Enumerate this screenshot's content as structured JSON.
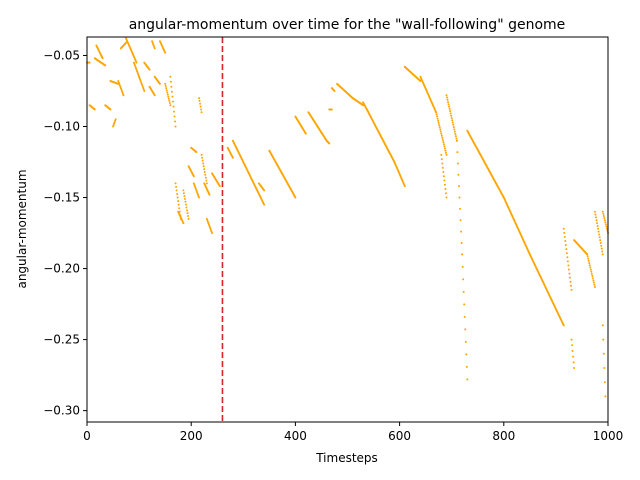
{
  "chart_data": {
    "type": "scatter",
    "title": "angular-momentum over time for the \"wall-following\" genome",
    "xlabel": "Timesteps",
    "ylabel": "angular-momentum",
    "xlim": [
      0,
      1000
    ],
    "ylim": [
      -0.308,
      -0.037
    ],
    "xticks": [
      0,
      200,
      400,
      600,
      800,
      1000
    ],
    "yticks": [
      -0.3,
      -0.25,
      -0.2,
      -0.15,
      -0.1,
      -0.05
    ],
    "xtick_labels": [
      "0",
      "200",
      "400",
      "600",
      "800",
      "1000"
    ],
    "ytick_labels": [
      "−0.30",
      "−0.25",
      "−0.20",
      "−0.15",
      "−0.10",
      "−0.05"
    ],
    "grid": false,
    "legend": "none",
    "point_color": "#ffa500",
    "vline": {
      "x": 260,
      "color": "#d62728",
      "style": "dashed"
    },
    "series": [
      {
        "segments": [
          [
            0,
            -0.055,
            5,
            -0.055
          ],
          [
            5,
            -0.085,
            15,
            -0.088
          ],
          [
            15,
            -0.052,
            35,
            -0.057
          ],
          [
            18,
            -0.043,
            30,
            -0.052
          ],
          [
            35,
            -0.085,
            45,
            -0.088
          ],
          [
            45,
            -0.068,
            60,
            -0.07
          ],
          [
            50,
            -0.1,
            55,
            -0.095
          ],
          [
            60,
            -0.068,
            70,
            -0.078
          ],
          [
            65,
            -0.045,
            75,
            -0.041
          ],
          [
            75,
            -0.038,
            95,
            -0.055
          ],
          [
            90,
            -0.055,
            100,
            -0.065
          ],
          [
            100,
            -0.065,
            110,
            -0.075
          ],
          [
            110,
            -0.055,
            120,
            -0.06
          ],
          [
            120,
            -0.072,
            130,
            -0.078
          ],
          [
            125,
            -0.04,
            130,
            -0.045
          ],
          [
            130,
            -0.065,
            140,
            -0.07
          ],
          [
            140,
            -0.04,
            150,
            -0.048
          ],
          [
            150,
            -0.07,
            160,
            -0.085
          ],
          [
            160,
            -0.065,
            170,
            -0.1
          ],
          [
            170,
            -0.14,
            180,
            -0.165
          ],
          [
            175,
            -0.16,
            185,
            -0.168
          ],
          [
            185,
            -0.145,
            195,
            -0.165
          ],
          [
            195,
            -0.128,
            205,
            -0.135
          ],
          [
            200,
            -0.115,
            210,
            -0.118
          ],
          [
            205,
            -0.14,
            215,
            -0.15
          ],
          [
            215,
            -0.08,
            220,
            -0.09
          ],
          [
            220,
            -0.12,
            230,
            -0.14
          ],
          [
            225,
            -0.14,
            235,
            -0.148
          ],
          [
            230,
            -0.165,
            240,
            -0.175
          ],
          [
            240,
            -0.133,
            255,
            -0.142
          ],
          [
            270,
            -0.115,
            280,
            -0.122
          ],
          [
            280,
            -0.11,
            340,
            -0.155
          ],
          [
            330,
            -0.14,
            340,
            -0.145
          ],
          [
            350,
            -0.117,
            400,
            -0.15
          ],
          [
            400,
            -0.093,
            420,
            -0.105
          ],
          [
            425,
            -0.09,
            460,
            -0.11
          ],
          [
            460,
            -0.11,
            465,
            -0.112
          ],
          [
            465,
            -0.088,
            470,
            -0.088
          ],
          [
            470,
            -0.073,
            475,
            -0.075
          ],
          [
            480,
            -0.07,
            510,
            -0.08
          ],
          [
            510,
            -0.08,
            530,
            -0.085
          ],
          [
            530,
            -0.083,
            590,
            -0.125
          ],
          [
            590,
            -0.125,
            610,
            -0.142
          ],
          [
            610,
            -0.058,
            640,
            -0.068
          ],
          [
            640,
            -0.065,
            670,
            -0.09
          ],
          [
            670,
            -0.09,
            690,
            -0.12
          ],
          [
            680,
            -0.12,
            690,
            -0.15
          ],
          [
            690,
            -0.078,
            710,
            -0.11
          ],
          [
            710,
            -0.11,
            720,
            -0.19
          ],
          [
            720,
            -0.19,
            730,
            -0.278
          ],
          [
            730,
            -0.103,
            800,
            -0.15
          ],
          [
            800,
            -0.15,
            850,
            -0.19
          ],
          [
            850,
            -0.19,
            915,
            -0.24
          ],
          [
            915,
            -0.172,
            930,
            -0.215
          ],
          [
            930,
            -0.25,
            935,
            -0.27
          ],
          [
            935,
            -0.18,
            960,
            -0.19
          ],
          [
            960,
            -0.19,
            975,
            -0.213
          ],
          [
            975,
            -0.16,
            990,
            -0.19
          ],
          [
            990,
            -0.16,
            1000,
            -0.175
          ],
          [
            990,
            -0.24,
            995,
            -0.29
          ]
        ]
      }
    ]
  }
}
